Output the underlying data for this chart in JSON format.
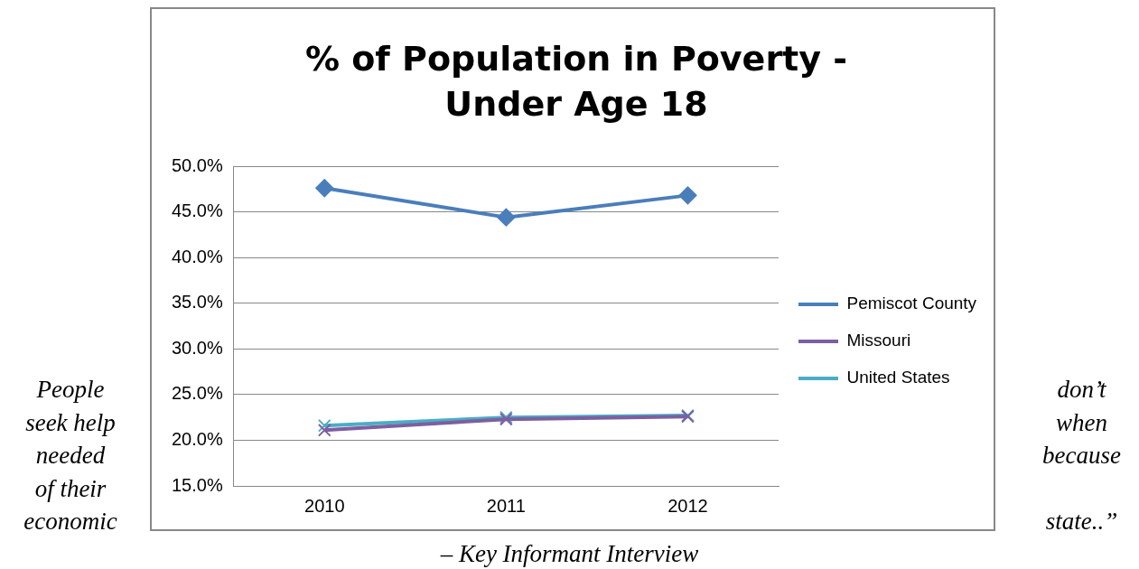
{
  "chart_data": {
    "type": "line",
    "title": "% of Population in Poverty - Under Age 18",
    "categories": [
      "2010",
      "2011",
      "2012"
    ],
    "series": [
      {
        "name": "Pemiscot County",
        "color": "#4a7ebb",
        "marker": "diamond",
        "values": [
          47.6,
          44.4,
          46.8
        ]
      },
      {
        "name": "Missouri",
        "color": "#7d5fa0",
        "marker": "cross",
        "values": [
          21.1,
          22.3,
          22.6
        ]
      },
      {
        "name": "United States",
        "color": "#4bacc6",
        "marker": "cross",
        "values": [
          21.6,
          22.5,
          22.7
        ]
      }
    ],
    "ylim": [
      15,
      50
    ],
    "yticks": [
      {
        "value": 15,
        "label": "15.0%"
      },
      {
        "value": 20,
        "label": "20.0%"
      },
      {
        "value": 25,
        "label": "25.0%"
      },
      {
        "value": 30,
        "label": "30.0%"
      },
      {
        "value": 35,
        "label": "35.0%"
      },
      {
        "value": 40,
        "label": "40.0%"
      },
      {
        "value": 45,
        "label": "45.0%"
      },
      {
        "value": 50,
        "label": "50.0%"
      }
    ],
    "grid": "y",
    "legend": "right",
    "annotations": [
      "People\nseek help\nneeded\nof their\neconomic",
      "don’t\nwhen\nbecause\n\nstate..”",
      "– Key Informant Interview"
    ]
  }
}
